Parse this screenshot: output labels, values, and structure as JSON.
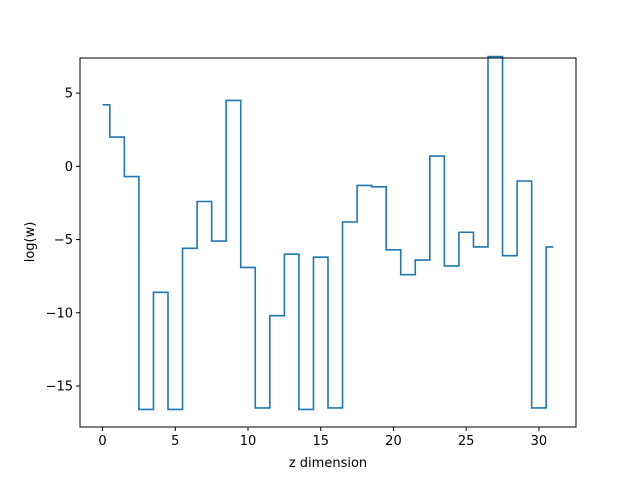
{
  "chart_data": {
    "type": "line",
    "drawstyle": "steps-mid",
    "xlabel": "z dimension",
    "ylabel": "log(w)",
    "xlim": [
      -1.55,
      32.55
    ],
    "ylim": [
      -17.8,
      7.4
    ],
    "xticks": [
      0,
      5,
      10,
      15,
      20,
      25,
      30
    ],
    "yticks": [
      -15,
      -10,
      -5,
      0,
      5
    ],
    "grid": false,
    "series": [
      {
        "color": "#1f77b4",
        "x": [
          0,
          1,
          2,
          3,
          4,
          5,
          6,
          7,
          8,
          9,
          10,
          11,
          12,
          13,
          14,
          15,
          16,
          17,
          18,
          19,
          20,
          21,
          22,
          23,
          24,
          25,
          26,
          27,
          28,
          29,
          30,
          31
        ],
        "values": [
          4.2,
          2.0,
          -0.7,
          -16.6,
          -8.6,
          -16.6,
          -5.6,
          -2.4,
          -5.1,
          4.5,
          -6.9,
          -16.5,
          -10.2,
          -6.0,
          -16.6,
          -6.2,
          -16.5,
          -3.8,
          -1.3,
          -1.4,
          -5.7,
          -7.4,
          -6.4,
          0.7,
          -6.8,
          -4.5,
          -5.5,
          7.5,
          -6.1,
          -1.0,
          -16.5,
          -5.5
        ]
      }
    ]
  }
}
